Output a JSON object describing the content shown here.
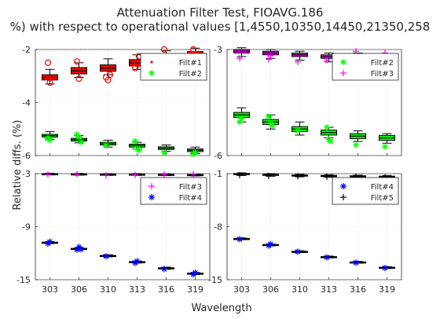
{
  "figure": {
    "title": "Attenuation Filter Test, FIOAVG.186",
    "subtitle": "%) with respect to operational values [1,4550,10350,14450,21350,258",
    "ylabel": "Relative diffs. (%)",
    "xlabel": "Wavelength"
  },
  "chart_data": [
    {
      "type": "box",
      "panel": "top-left",
      "categories": [
        "303",
        "306",
        "310",
        "313",
        "316",
        "319"
      ],
      "ylim": [
        -6,
        -2
      ],
      "yticks": [
        "-2",
        "-4",
        "-6"
      ],
      "grid": true,
      "legend_placement": "top-right",
      "series": [
        {
          "name": "Filt#1",
          "color": "#ff0000",
          "marker": "o",
          "legend_marker": "dot",
          "medians": [
            -3.05,
            -2.8,
            -2.7,
            -2.5,
            -2.3,
            -2.2
          ],
          "q1": [
            -3.15,
            -2.92,
            -2.82,
            -2.62,
            -2.42,
            -2.32
          ],
          "q3": [
            -2.95,
            -2.68,
            -2.58,
            -2.38,
            -2.18,
            -2.08
          ],
          "wlo": [
            -3.3,
            -3.05,
            -2.95,
            -2.75,
            -2.55,
            -2.45
          ],
          "whi": [
            -2.75,
            -2.5,
            -2.35,
            -2.2,
            -2.05,
            -1.95
          ],
          "outliers": [
            [
              -2.5,
              -3.25
            ],
            [
              -2.45,
              -3.1
            ],
            [
              -3.05,
              -3.15,
              -2.95
            ],
            [
              -2.7,
              -2.55,
              -2.25
            ],
            [
              -2.0
            ],
            [
              -2.0
            ]
          ]
        },
        {
          "name": "Filt#2",
          "color": "#00ff00",
          "marker": "*",
          "legend_marker": "*",
          "medians": [
            -5.25,
            -5.4,
            -5.55,
            -5.62,
            -5.72,
            -5.8
          ],
          "q1": [
            -5.3,
            -5.45,
            -5.6,
            -5.68,
            -5.77,
            -5.85
          ],
          "q3": [
            -5.2,
            -5.35,
            -5.5,
            -5.57,
            -5.67,
            -5.75
          ],
          "wlo": [
            -5.38,
            -5.52,
            -5.68,
            -5.75,
            -5.84,
            -5.92
          ],
          "whi": [
            -5.1,
            -5.25,
            -5.42,
            -5.5,
            -5.6,
            -5.68
          ],
          "outliers": [
            [
              -5.35,
              -5.42
            ],
            [
              -5.2,
              -5.3,
              -5.5
            ],
            [
              -5.62
            ],
            [
              -5.45,
              -5.75,
              -5.8
            ],
            [
              -5.9
            ],
            [
              -5.95,
              -5.88
            ]
          ]
        }
      ]
    },
    {
      "type": "box",
      "panel": "top-right",
      "categories": [
        "303",
        "306",
        "310",
        "313",
        "316",
        "319"
      ],
      "ylim": [
        -6,
        -3
      ],
      "yticks": [
        "-3",
        "-6"
      ],
      "grid": true,
      "legend_placement": "top-right",
      "series": [
        {
          "name": "Filt#2",
          "color": "#00ff00",
          "marker": "*",
          "legend_marker": "*",
          "medians": [
            -4.85,
            -5.05,
            -5.25,
            -5.35,
            -5.45,
            -5.5
          ],
          "q1": [
            -4.92,
            -5.12,
            -5.32,
            -5.42,
            -5.52,
            -5.57
          ],
          "q3": [
            -4.78,
            -4.98,
            -5.18,
            -5.28,
            -5.38,
            -5.43
          ],
          "wlo": [
            -5.05,
            -5.25,
            -5.42,
            -5.5,
            -5.6,
            -5.65
          ],
          "whi": [
            -4.65,
            -4.85,
            -5.05,
            -5.2,
            -5.3,
            -5.38
          ],
          "outliers": [
            [
              -5.05,
              -4.95
            ],
            [
              -4.9,
              -5.1,
              -5.15
            ],
            [
              -5.3
            ],
            [
              -5.2,
              -5.55,
              -5.6
            ],
            [
              -5.7
            ],
            [
              -5.75
            ]
          ]
        },
        {
          "name": "Filt#3",
          "color": "#ff00ff",
          "marker": "+",
          "legend_marker": "+",
          "medians": [
            -3.05,
            -3.1,
            -3.15,
            -3.2,
            -3.22,
            -3.25
          ],
          "q1": [
            -3.1,
            -3.15,
            -3.2,
            -3.25,
            -3.27,
            -3.3
          ],
          "q3": [
            -3.0,
            -3.05,
            -3.1,
            -3.15,
            -3.17,
            -3.2
          ],
          "wlo": [
            -3.2,
            -3.25,
            -3.3,
            -3.35,
            -3.35,
            -3.38
          ],
          "whi": [
            -2.95,
            -3.0,
            -3.05,
            -3.1,
            -3.1,
            -3.12
          ],
          "outliers": [
            [
              -3.25
            ],
            [
              -3.28,
              -3.18
            ],
            [
              -3.35
            ],
            [
              -3.3
            ],
            [
              -3.05
            ],
            [
              -3.1
            ]
          ]
        }
      ]
    },
    {
      "type": "box",
      "panel": "bottom-left",
      "categories": [
        "303",
        "306",
        "310",
        "313",
        "316",
        "319"
      ],
      "ylim": [
        -15,
        -3
      ],
      "yticks": [
        "-3",
        "-9",
        "-15"
      ],
      "grid": true,
      "legend_placement": "top-right",
      "series": [
        {
          "name": "Filt#3",
          "color": "#ff00ff",
          "marker": "+",
          "legend_marker": "+",
          "medians": [
            -3.05,
            -3.07,
            -3.1,
            -3.1,
            -3.12,
            -3.15
          ],
          "q1": [
            -3.1,
            -3.12,
            -3.15,
            -3.15,
            -3.17,
            -3.2
          ],
          "q3": [
            -3.0,
            -3.02,
            -3.05,
            -3.05,
            -3.07,
            -3.1
          ],
          "wlo": [
            -3.15,
            -3.17,
            -3.2,
            -3.2,
            -3.22,
            -3.25
          ],
          "whi": [
            -2.95,
            -2.97,
            -3.0,
            -3.0,
            -3.02,
            -3.05
          ],
          "outliers": [
            [
              -3.1
            ],
            [
              -3.05
            ],
            [
              -3.2
            ],
            [
              -3.15
            ],
            [
              -3.1
            ],
            [
              -3.05
            ]
          ]
        },
        {
          "name": "Filt#4",
          "color": "#0000ff",
          "marker": "*",
          "legend_marker": "*",
          "medians": [
            -10.8,
            -11.5,
            -12.3,
            -13.0,
            -13.7,
            -14.3
          ],
          "q1": [
            -10.85,
            -11.55,
            -12.35,
            -13.05,
            -13.75,
            -14.35
          ],
          "q3": [
            -10.75,
            -11.45,
            -12.25,
            -12.95,
            -13.65,
            -14.25
          ],
          "wlo": [
            -10.92,
            -11.62,
            -12.42,
            -13.12,
            -13.82,
            -14.42
          ],
          "whi": [
            -10.68,
            -11.38,
            -12.18,
            -12.88,
            -13.58,
            -14.18
          ],
          "outliers": [
            [
              -10.9,
              -10.7
            ],
            [
              -11.6,
              -11.3,
              -11.55
            ],
            [
              -12.35
            ],
            [
              -13.1,
              -12.9
            ],
            [
              -13.8
            ],
            [
              -14.4,
              -14.2
            ]
          ]
        }
      ]
    },
    {
      "type": "box",
      "panel": "bottom-right",
      "categories": [
        "303",
        "306",
        "310",
        "313",
        "316",
        "319"
      ],
      "ylim": [
        -15,
        -1
      ],
      "yticks": [
        "-1",
        "-8",
        "-15"
      ],
      "grid": true,
      "legend_placement": "top-right",
      "series": [
        {
          "name": "Filt#4",
          "color": "#0000ff",
          "marker": "*",
          "legend_marker": "*",
          "medians": [
            -9.6,
            -10.4,
            -11.3,
            -12.0,
            -12.7,
            -13.4
          ],
          "q1": [
            -9.65,
            -10.45,
            -11.35,
            -12.05,
            -12.75,
            -13.45
          ],
          "q3": [
            -9.55,
            -10.35,
            -11.25,
            -11.95,
            -12.65,
            -13.35
          ],
          "wlo": [
            -9.72,
            -10.52,
            -11.42,
            -12.12,
            -12.82,
            -13.52
          ],
          "whi": [
            -9.48,
            -10.28,
            -11.18,
            -11.88,
            -12.58,
            -13.28
          ],
          "outliers": [
            [
              -9.65
            ],
            [
              -10.5,
              -10.3
            ],
            [
              -11.3
            ],
            [
              -12.05
            ],
            [
              -12.75
            ],
            [
              -13.45
            ]
          ]
        },
        {
          "name": "Filt#5",
          "color": "#000000",
          "marker": "+",
          "legend_marker": "+",
          "medians": [
            -1.05,
            -1.15,
            -1.25,
            -1.3,
            -1.35,
            -1.4
          ],
          "q1": [
            -1.12,
            -1.22,
            -1.32,
            -1.37,
            -1.42,
            -1.47
          ],
          "q3": [
            -0.98,
            -1.08,
            -1.18,
            -1.23,
            -1.28,
            -1.33
          ],
          "wlo": [
            -1.25,
            -1.35,
            -1.42,
            -1.47,
            -1.52,
            -1.57
          ],
          "whi": [
            -0.9,
            -1.0,
            -1.1,
            -1.15,
            -1.2,
            -1.25
          ],
          "outliers": [
            [
              -1.2
            ],
            [
              -1.3
            ],
            [
              -1.35
            ],
            [
              -1.4
            ],
            [
              -1.45
            ],
            [
              -1.5
            ]
          ]
        }
      ]
    }
  ]
}
